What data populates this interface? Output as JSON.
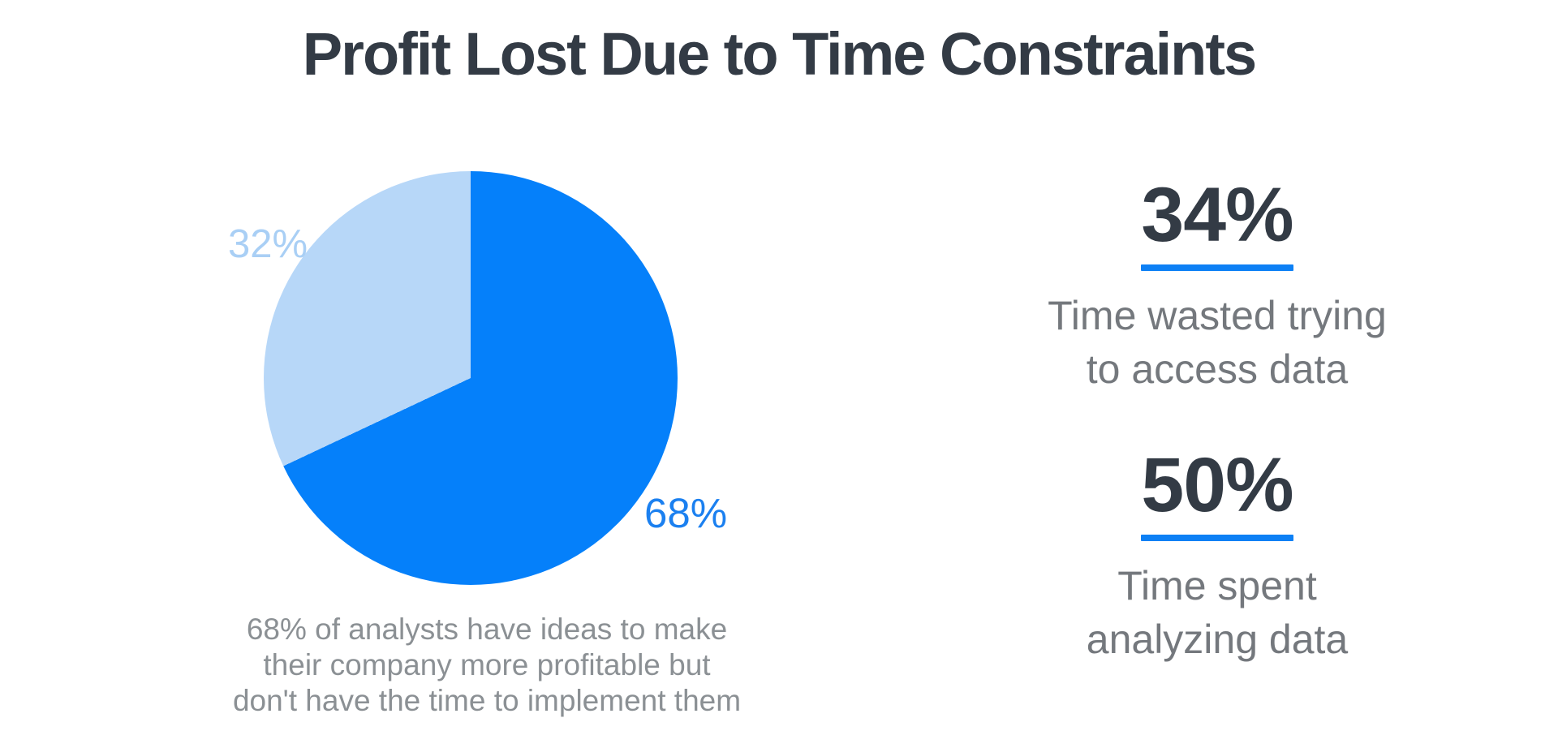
{
  "theme": {
    "background": "#ffffff",
    "heading_color": "#333b45",
    "accent_blue": "#0d80f5",
    "caption_gray": "#8b9094",
    "stat_label_gray": "#74787d"
  },
  "chart_data": {
    "type": "pie",
    "title": "Profit Lost Due to Time Constraints",
    "labels": [
      "68%",
      "32%"
    ],
    "values": [
      68,
      32
    ],
    "colors": [
      "#0580fa",
      "#b7d7f8"
    ],
    "label_colors": [
      "#1b80f0",
      "#a9cff5"
    ],
    "start_angle_deg": 0,
    "direction": "clockwise",
    "legend_position": "none",
    "annotation": "68% of analysts have ideas to make their company more profitable but don't have the time to implement them",
    "annotation_lines": [
      "68% of analysts have ideas to make",
      "their company more profitable but",
      "don't have the time to implement them"
    ],
    "callouts": [
      {
        "value": "34%",
        "label": "Time wasted trying to access data",
        "lines": [
          "Time wasted trying",
          "to access data"
        ]
      },
      {
        "value": "50%",
        "label": "Time spent analyzing data",
        "lines": [
          "Time spent",
          "analyzing data"
        ]
      }
    ]
  }
}
